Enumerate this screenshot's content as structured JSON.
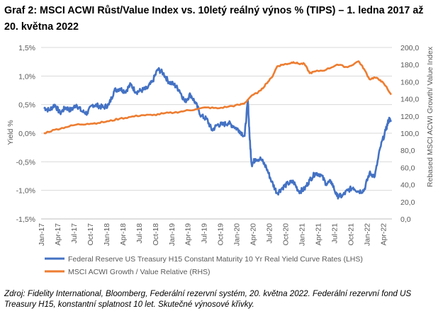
{
  "title": "Graf 2: MSCI ACWI Růst/Value Index vs. 10letý reálný výnos % (TIPS) – 1. ledna 2017 až 20. května 2022",
  "source": "Zdroj: Fidelity International, Bloomberg, Federální rezervní systém, 20. května 2022. Federální rezervní fond US Treasury H15, konstantní splatnost 10 let. Skutečné výnosové křivky.",
  "chart_data": {
    "type": "line",
    "ylabel": "Yield %",
    "y2label": "Rebased MSCI ACWI Growth/ Value Index",
    "ylim": [
      -1.5,
      1.5
    ],
    "y2lim": [
      0,
      200
    ],
    "grid": true,
    "legend_position": "bottom",
    "y_ticks": [
      "1,5%",
      "1,0%",
      "0,5%",
      "0,0%",
      "-0,5%",
      "-1,0%",
      "-1,5%"
    ],
    "y2_ticks": [
      "200,0",
      "180,0",
      "160,0",
      "140,0",
      "120,0",
      "100,0",
      "80,0",
      "60,0",
      "40,0",
      "20,0",
      "0,0"
    ],
    "x_ticks": [
      "Jan-17",
      "Apr-17",
      "Jul-17",
      "Oct-17",
      "Jan-18",
      "Apr-18",
      "Jul-18",
      "Oct-18",
      "Jan-19",
      "Apr-19",
      "Jul-19",
      "Oct-19",
      "Jan-20",
      "Apr-20",
      "Jul-20",
      "Oct-20",
      "Jan-21",
      "Apr-21",
      "Jul-21",
      "Oct-21",
      "Jan-22",
      "Apr-22"
    ],
    "series": [
      {
        "name": "Federal Reserve US Treasury H15 Constant Maturity 10 Yr Real Yield Curve Rates (LHS)",
        "axis": "left",
        "color": "#4472C4",
        "x": [
          "2017-01",
          "2017-02",
          "2017-03",
          "2017-04",
          "2017-05",
          "2017-06",
          "2017-07",
          "2017-08",
          "2017-09",
          "2017-10",
          "2017-11",
          "2017-12",
          "2018-01",
          "2018-02",
          "2018-03",
          "2018-04",
          "2018-05",
          "2018-06",
          "2018-07",
          "2018-08",
          "2018-09",
          "2018-10",
          "2018-11",
          "2018-12",
          "2019-01",
          "2019-02",
          "2019-03",
          "2019-04",
          "2019-05",
          "2019-06",
          "2019-07",
          "2019-08",
          "2019-09",
          "2019-10",
          "2019-11",
          "2019-12",
          "2020-01",
          "2020-02",
          "2020-03a",
          "2020-03b",
          "2020-03c",
          "2020-04",
          "2020-05",
          "2020-06",
          "2020-07",
          "2020-08",
          "2020-09",
          "2020-10",
          "2020-11",
          "2020-12",
          "2021-01",
          "2021-02",
          "2021-03",
          "2021-04",
          "2021-05",
          "2021-06",
          "2021-07",
          "2021-08",
          "2021-09",
          "2021-10",
          "2021-11",
          "2021-12",
          "2022-01",
          "2022-02",
          "2022-03",
          "2022-04",
          "2022-05a",
          "2022-05b"
        ],
        "values": [
          0.45,
          0.4,
          0.5,
          0.35,
          0.45,
          0.4,
          0.5,
          0.38,
          0.35,
          0.5,
          0.48,
          0.45,
          0.5,
          0.75,
          0.78,
          0.73,
          0.85,
          0.72,
          0.75,
          0.78,
          0.9,
          1.12,
          1.05,
          0.9,
          0.85,
          0.75,
          0.55,
          0.68,
          0.52,
          0.3,
          0.25,
          0.05,
          0.15,
          0.15,
          0.18,
          0.12,
          0.05,
          -0.05,
          0.58,
          -0.12,
          -0.55,
          -0.45,
          -0.45,
          -0.6,
          -0.85,
          -1.05,
          -0.95,
          -0.88,
          -0.85,
          -1.02,
          -0.98,
          -0.82,
          -0.7,
          -0.72,
          -0.88,
          -0.85,
          -1.1,
          -1.1,
          -1.0,
          -0.95,
          -1.02,
          -1.0,
          -0.7,
          -0.75,
          -0.25,
          0.05,
          0.25,
          0.2
        ]
      },
      {
        "name": "MSCI ACWI Growth / Value Relative (RHS)",
        "axis": "right",
        "color": "#ED7D31",
        "x": [
          "2017-01",
          "2017-03",
          "2017-05",
          "2017-07",
          "2017-09",
          "2017-11",
          "2018-01",
          "2018-03",
          "2018-05",
          "2018-07",
          "2018-09",
          "2018-11",
          "2019-01",
          "2019-03",
          "2019-05",
          "2019-07",
          "2019-09",
          "2019-11",
          "2020-01",
          "2020-02",
          "2020-03",
          "2020-05",
          "2020-06",
          "2020-07",
          "2020-08",
          "2020-09",
          "2020-10",
          "2020-11",
          "2020-12",
          "2021-01",
          "2021-02",
          "2021-03",
          "2021-05",
          "2021-07",
          "2021-09",
          "2021-11",
          "2021-12",
          "2022-01",
          "2022-02",
          "2022-03",
          "2022-04",
          "2022-05"
        ],
        "values": [
          100,
          104,
          107,
          110,
          111,
          112,
          114,
          117,
          119,
          121,
          121,
          123,
          124,
          126,
          128,
          130,
          129,
          131,
          133,
          135,
          142,
          150,
          158,
          165,
          178,
          180,
          181,
          183,
          181,
          181,
          170,
          172,
          174,
          180,
          177,
          184,
          175,
          163,
          165,
          162,
          155,
          145
        ]
      }
    ]
  }
}
